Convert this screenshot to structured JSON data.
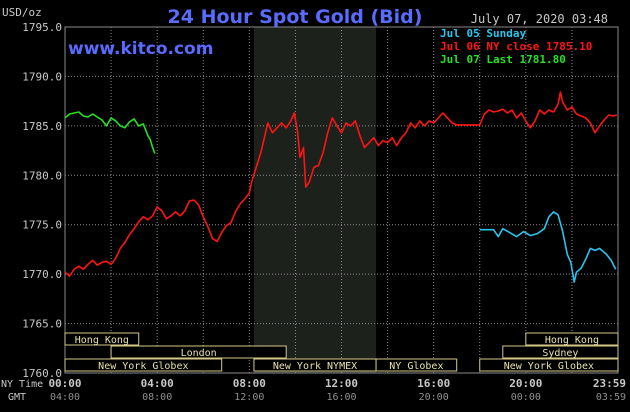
{
  "title": "24 Hour Spot Gold (Bid)",
  "unit_label": "USD/oz",
  "date_label": "July 07, 2020 03:48",
  "watermark": "www.kitco.com",
  "colors": {
    "background": "#000000",
    "grid": "#8a8a8a",
    "shaded_session": "#1c211c",
    "title": "#5a6bff",
    "watermark": "#5a6bff",
    "axis_text": "#c8c8c8",
    "jul05": "#2cc4ef",
    "jul06": "#ff1414",
    "jul07": "#25e025",
    "market_bar_fill": "#000000",
    "market_bar_border": "#d4c98a",
    "market_bar_text": "#e8e0a8"
  },
  "legend": [
    {
      "label": "Jul 05 Sunday",
      "color": "#2cc4ef"
    },
    {
      "label": "Jul 06 NY close 1785.10",
      "color": "#ff1414"
    },
    {
      "label": "Jul 07 Last 1781.80",
      "color": "#25e025"
    }
  ],
  "axis_row_labels": {
    "ny_time": "NY Time",
    "gmt": "GMT"
  },
  "markets": [
    {
      "name": "Hong Kong",
      "start": 0,
      "end": 3.2
    },
    {
      "name": "London",
      "start": 2.0,
      "end": 9.6
    },
    {
      "name": "New York Globex",
      "start": 0,
      "end": 6.8
    },
    {
      "name": "New York NYMEX",
      "start": 8.2,
      "end": 13.5
    },
    {
      "name": "NY Globex",
      "start": 13.5,
      "end": 17.0
    },
    {
      "name": "Hong Kong",
      "start": 20.0,
      "end": 24.0
    },
    {
      "name": "Sydney",
      "start": 19.0,
      "end": 24.0
    },
    {
      "name": "New York Globex",
      "start": 18.0,
      "end": 24.0
    }
  ],
  "chart_data": {
    "type": "line",
    "title": "24 Hour Spot Gold (Bid)",
    "ylabel": "USD/oz",
    "xlim": [
      0,
      24
    ],
    "ylim": [
      1760,
      1795
    ],
    "y_ticks": [
      1760.0,
      1765.0,
      1770.0,
      1775.0,
      1780.0,
      1785.0,
      1790.0,
      1795.0
    ],
    "y_tick_labels": [
      "1760.0",
      "1765.0",
      "1770.0",
      "1775.0",
      "1780.0",
      "1785.0",
      "1790.0",
      "1795.0"
    ],
    "x_ticks": [
      0,
      4,
      8,
      12,
      16,
      20,
      23.983
    ],
    "x_tick_labels_ny": [
      "00:00",
      "04:00",
      "08:00",
      "12:00",
      "16:00",
      "20:00",
      "23:59"
    ],
    "x_tick_labels_gmt": [
      "04:00",
      "08:00",
      "12:00",
      "16:00",
      "20:00",
      "00:00",
      "03:59"
    ],
    "shaded_region": [
      8.2,
      13.5
    ],
    "grid": true,
    "legend_position": "top-right",
    "series": [
      {
        "name": "Jul 05 Sunday",
        "color": "#2cc4ef",
        "points": [
          [
            18.0,
            1774.5
          ],
          [
            18.6,
            1774.5
          ],
          [
            18.8,
            1773.8
          ],
          [
            19.0,
            1774.6
          ],
          [
            19.3,
            1774.2
          ],
          [
            19.6,
            1773.8
          ],
          [
            19.9,
            1774.3
          ],
          [
            20.2,
            1773.9
          ],
          [
            20.5,
            1774.1
          ],
          [
            20.8,
            1774.6
          ],
          [
            21.0,
            1775.8
          ],
          [
            21.2,
            1776.3
          ],
          [
            21.4,
            1776.0
          ],
          [
            21.6,
            1774.3
          ],
          [
            21.8,
            1772.0
          ],
          [
            21.95,
            1771.2
          ],
          [
            22.1,
            1769.2
          ],
          [
            22.2,
            1770.2
          ],
          [
            22.4,
            1770.6
          ],
          [
            22.6,
            1771.5
          ],
          [
            22.8,
            1772.6
          ],
          [
            23.0,
            1772.4
          ],
          [
            23.2,
            1772.6
          ],
          [
            23.5,
            1772.0
          ],
          [
            23.7,
            1771.4
          ],
          [
            23.9,
            1770.5
          ]
        ]
      },
      {
        "name": "Jul 06 NY close 1785.10",
        "color": "#ff1414",
        "points": [
          [
            0.0,
            1770.2
          ],
          [
            0.2,
            1769.8
          ],
          [
            0.4,
            1770.5
          ],
          [
            0.6,
            1770.8
          ],
          [
            0.8,
            1770.5
          ],
          [
            1.0,
            1771.0
          ],
          [
            1.2,
            1771.4
          ],
          [
            1.4,
            1770.9
          ],
          [
            1.6,
            1771.2
          ],
          [
            1.8,
            1771.3
          ],
          [
            2.0,
            1771.0
          ],
          [
            2.2,
            1771.6
          ],
          [
            2.4,
            1772.6
          ],
          [
            2.6,
            1773.2
          ],
          [
            2.8,
            1774.0
          ],
          [
            3.0,
            1774.6
          ],
          [
            3.2,
            1775.3
          ],
          [
            3.4,
            1775.8
          ],
          [
            3.6,
            1775.5
          ],
          [
            3.8,
            1775.9
          ],
          [
            4.0,
            1776.8
          ],
          [
            4.2,
            1776.4
          ],
          [
            4.4,
            1775.6
          ],
          [
            4.6,
            1775.9
          ],
          [
            4.8,
            1776.3
          ],
          [
            5.0,
            1775.9
          ],
          [
            5.2,
            1776.4
          ],
          [
            5.4,
            1777.4
          ],
          [
            5.6,
            1777.5
          ],
          [
            5.8,
            1777.0
          ],
          [
            6.0,
            1775.8
          ],
          [
            6.2,
            1774.8
          ],
          [
            6.4,
            1773.6
          ],
          [
            6.6,
            1773.3
          ],
          [
            6.8,
            1774.2
          ],
          [
            7.0,
            1774.9
          ],
          [
            7.2,
            1775.2
          ],
          [
            7.4,
            1776.3
          ],
          [
            7.6,
            1777.1
          ],
          [
            7.8,
            1777.6
          ],
          [
            8.0,
            1778.2
          ],
          [
            8.1,
            1779.3
          ],
          [
            8.3,
            1780.8
          ],
          [
            8.5,
            1782.3
          ],
          [
            8.7,
            1784.3
          ],
          [
            8.8,
            1785.3
          ],
          [
            9.0,
            1784.3
          ],
          [
            9.2,
            1784.8
          ],
          [
            9.4,
            1785.3
          ],
          [
            9.6,
            1784.8
          ],
          [
            9.8,
            1785.5
          ],
          [
            9.95,
            1786.3
          ],
          [
            10.1,
            1784.3
          ],
          [
            10.2,
            1781.8
          ],
          [
            10.35,
            1782.8
          ],
          [
            10.45,
            1778.8
          ],
          [
            10.6,
            1779.3
          ],
          [
            10.8,
            1780.8
          ],
          [
            11.0,
            1781.0
          ],
          [
            11.2,
            1782.3
          ],
          [
            11.4,
            1784.3
          ],
          [
            11.6,
            1785.8
          ],
          [
            11.8,
            1785.0
          ],
          [
            12.0,
            1784.3
          ],
          [
            12.2,
            1785.3
          ],
          [
            12.4,
            1785.0
          ],
          [
            12.6,
            1785.5
          ],
          [
            12.8,
            1784.0
          ],
          [
            13.0,
            1782.8
          ],
          [
            13.2,
            1783.3
          ],
          [
            13.4,
            1783.8
          ],
          [
            13.6,
            1783.0
          ],
          [
            13.8,
            1783.5
          ],
          [
            14.0,
            1783.3
          ],
          [
            14.2,
            1783.8
          ],
          [
            14.4,
            1783.0
          ],
          [
            14.6,
            1783.8
          ],
          [
            14.8,
            1784.3
          ],
          [
            15.0,
            1785.3
          ],
          [
            15.2,
            1784.8
          ],
          [
            15.4,
            1785.5
          ],
          [
            15.6,
            1785.0
          ],
          [
            15.8,
            1785.5
          ],
          [
            16.0,
            1785.3
          ],
          [
            16.2,
            1785.8
          ],
          [
            16.4,
            1786.3
          ],
          [
            16.6,
            1785.8
          ],
          [
            16.8,
            1785.3
          ],
          [
            17.0,
            1785.1
          ],
          [
            17.5,
            1785.1
          ],
          [
            18.0,
            1785.1
          ],
          [
            18.2,
            1786.2
          ],
          [
            18.4,
            1786.6
          ],
          [
            18.6,
            1786.4
          ],
          [
            18.8,
            1786.5
          ],
          [
            19.0,
            1786.7
          ],
          [
            19.2,
            1786.3
          ],
          [
            19.4,
            1786.6
          ],
          [
            19.6,
            1785.8
          ],
          [
            19.8,
            1786.3
          ],
          [
            20.0,
            1785.5
          ],
          [
            20.2,
            1784.8
          ],
          [
            20.4,
            1785.5
          ],
          [
            20.6,
            1786.6
          ],
          [
            20.8,
            1786.2
          ],
          [
            21.0,
            1786.6
          ],
          [
            21.2,
            1786.4
          ],
          [
            21.4,
            1787.2
          ],
          [
            21.5,
            1788.4
          ],
          [
            21.6,
            1787.4
          ],
          [
            21.8,
            1786.6
          ],
          [
            22.0,
            1786.9
          ],
          [
            22.2,
            1786.2
          ],
          [
            22.4,
            1786.0
          ],
          [
            22.6,
            1785.8
          ],
          [
            22.8,
            1785.3
          ],
          [
            23.0,
            1784.3
          ],
          [
            23.2,
            1785.0
          ],
          [
            23.4,
            1785.6
          ],
          [
            23.6,
            1786.1
          ],
          [
            23.8,
            1786.0
          ],
          [
            23.95,
            1786.1
          ]
        ]
      },
      {
        "name": "Jul 07 Last 1781.80",
        "color": "#25e025",
        "points": [
          [
            0.0,
            1785.8
          ],
          [
            0.2,
            1786.2
          ],
          [
            0.4,
            1786.3
          ],
          [
            0.6,
            1786.4
          ],
          [
            0.8,
            1786.0
          ],
          [
            1.0,
            1785.9
          ],
          [
            1.2,
            1786.2
          ],
          [
            1.4,
            1785.9
          ],
          [
            1.6,
            1785.6
          ],
          [
            1.8,
            1785.0
          ],
          [
            2.0,
            1785.8
          ],
          [
            2.2,
            1785.5
          ],
          [
            2.4,
            1785.0
          ],
          [
            2.6,
            1784.8
          ],
          [
            2.8,
            1785.4
          ],
          [
            3.0,
            1785.7
          ],
          [
            3.2,
            1785.0
          ],
          [
            3.4,
            1785.2
          ],
          [
            3.6,
            1784.0
          ],
          [
            3.7,
            1783.6
          ],
          [
            3.8,
            1782.8
          ],
          [
            3.9,
            1782.2
          ]
        ]
      }
    ]
  }
}
